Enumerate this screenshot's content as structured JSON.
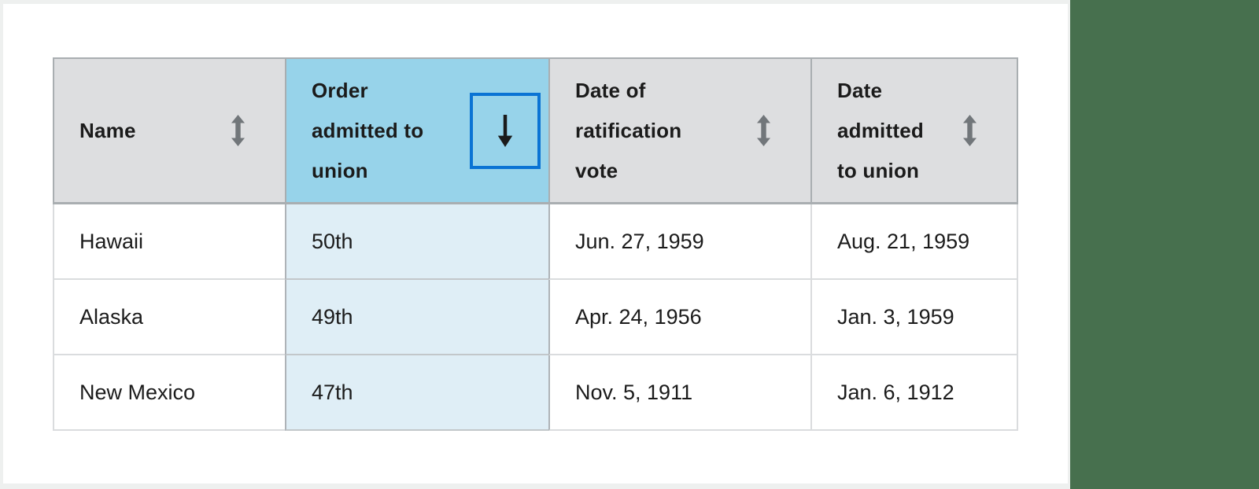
{
  "page": {
    "background": "#eef0ef",
    "card_background": "#ffffff",
    "side_panel_color": "#47704e"
  },
  "table": {
    "columns": [
      {
        "label": "Name",
        "sort_state": "none",
        "icon": "up-down-arrow-icon"
      },
      {
        "label": "Order admitted to union",
        "sort_state": "descending",
        "icon": "arrow-down-icon",
        "focused": true
      },
      {
        "label": "Date of ratification vote",
        "sort_state": "none",
        "icon": "up-down-arrow-icon"
      },
      {
        "label": "Date admitted to union",
        "sort_state": "none",
        "icon": "up-down-arrow-icon"
      }
    ],
    "rows": [
      [
        "Hawaii",
        "50th",
        "Jun. 27, 1959",
        "Aug. 21, 1959"
      ],
      [
        "Alaska",
        "49th",
        "Apr. 24, 1956",
        "Jan. 3, 1959"
      ],
      [
        "New Mexico",
        "47th",
        "Nov. 5, 1911",
        "Jan. 6, 1912"
      ]
    ],
    "colors": {
      "header_background": "#dddee0",
      "sorted_header_background": "#97d3ea",
      "sorted_cell_background": "#dfeef6",
      "focus_border": "#0a73d4",
      "header_border": "#a9aeb1",
      "row_border": "#dadcde",
      "text": "#1b1b1b",
      "sort_icon": "#71767a",
      "arrow_icon": "#1b1b1b"
    }
  }
}
